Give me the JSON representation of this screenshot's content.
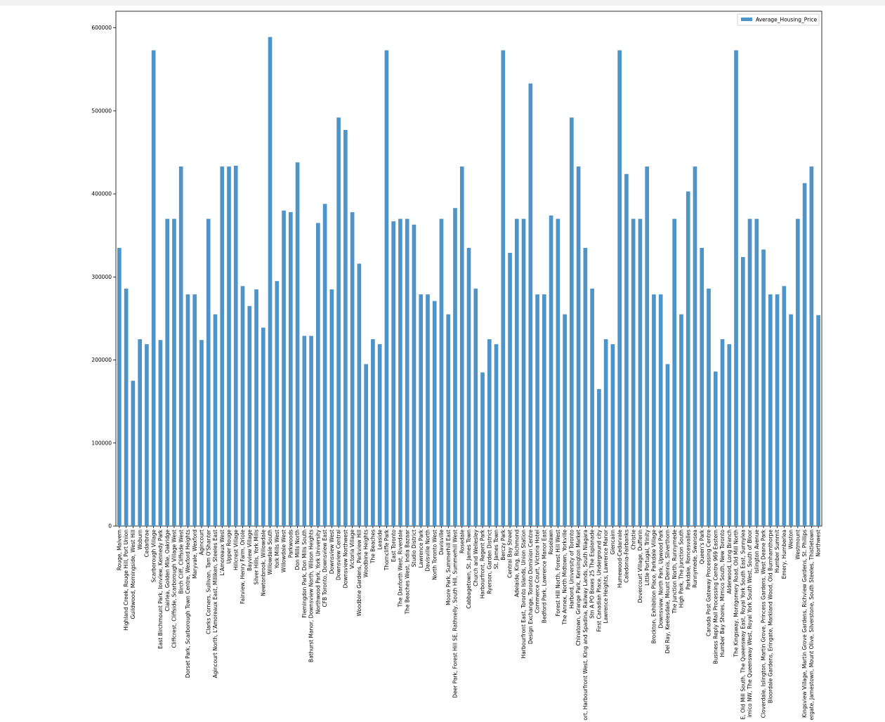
{
  "chart_data": {
    "type": "bar",
    "categories": [
      "Rouge, Malvern",
      "Highland Creek, Rouge Hill, Port Union",
      "Guildwood, Morningside, West Hill",
      "Woburn",
      "Cedarbrae",
      "Scarborough Village",
      "East Birchmount Park, Ionview, Kennedy Park",
      "Clairlea, Golden Mile, Oakridge",
      "Cliffcrest, Cliffside, Scarborough Village West",
      "Birch Cliff, Cliffside West",
      "Dorset Park, Scarborough Town Centre, Wexford Heights",
      "Maryvale, Wexford",
      "Agincourt",
      "Clarks Corners, Sullivan, Tam O'Shanter",
      "Agincourt North, L'Amoreaux East, Milliken, Steeles East",
      "L'Amoreaux West",
      "Upper Rouge",
      "Hillcrest Village",
      "Fairview, Henry Farm, Oriole",
      "Bayview Village",
      "Silver Hills, York Mills",
      "Newtonbrook, Willowdale",
      "Willowdale South",
      "York Mills West",
      "Willowdale West",
      "Parkwoods",
      "Don Mills North",
      "Flemingdon Park, Don Mills South",
      "Bathurst Manor, Downsview North, Wilson Heights",
      "Northwood Park, York University",
      "CFB Toronto, Downsview East",
      "Downsview West",
      "Downsview Central",
      "Downsview Northwest",
      "Victoria Village",
      "Woodbine Gardens, Parkview Hill",
      "Woodbine Heights",
      "The Beaches",
      "Leaside",
      "Thorncliffe Park",
      "East Toronto",
      "The Danforth West, Riverdale",
      "The Beaches West, India Bazaar",
      "Studio District",
      "Lawrence Park",
      "Davisville North",
      "North Toronto West",
      "Davisville",
      "Moore Park, Summerhill East",
      "Deer Park, Forest Hill SE, Rathnelly, South Hill, Summerhill West",
      "Rosedale",
      "Cabbagetown, St. James Town",
      "Church and Wellesley",
      "Harbourfront, Regent Park",
      "Ryerson, Garden District",
      "St. James Town",
      "Berczy Park",
      "Central Bay Street",
      "Adelaide, King, Richmond",
      "Harbourfront East, Toronto Islands, Union Station",
      "Design Exchange, Toronto Dominion Centre",
      "Commerce Court, Victoria Hotel",
      "Bedford Park, Lawrence Manor East",
      "Roselawn",
      "Forest Hill North, Forest Hill West",
      "The Annex, North Midtown, Yorkville",
      "Harbord, University of Toronto",
      "Chinatown, Grange Park, Kensington Market",
      "ort, Harbourfront West, King and Spadina, Railway Lands, South Niagara",
      "Stn A PO Boxes 25 The Esplanade",
      "First Canadian Place, Underground city",
      "Lawrence Heights, Lawrence Manor",
      "Glencairn",
      "Humewood-Cedarvale",
      "Caledonia-Fairbanks",
      "Christie",
      "Dovercourt Village, Dufferin",
      "Little Portugal, Trinity",
      "Brockton, Exhibition Place, Parkdale Village",
      "Downsview, North Park, Upwood Park",
      "Del Ray, Keelesdale, Mount Dennis, Silverthorn",
      "The Junction North, Runnymede",
      "High Park, The Junction South",
      "Parkdale, Roncesvalles",
      "Runnymede, Swansea",
      "Queen's Park",
      "Canada Post Gateway Processing Centre",
      "Business Reply Mail Processing Centre 969 Eastern",
      "Humber Bay Shores, Mimico South, New Toronto",
      "Alderwood, Long Branch",
      "The Kingsway, Montgomery Road, Old Mill North",
      "E, Old Mill South, The Queensway East, Royal York South East, Sunnylea",
      "imico NW, The Queensway West, Royal York South West, South of Bloor",
      "Islington Avenue",
      "Cloverdale, Islington, Martin Grove, Princess Gardens, West Deane Park",
      "Bloordale Gardens, Eringate, Markland Wood, Old Burnhamthorpe",
      "Humber Summit",
      "Emery, Humberlea",
      "Weston",
      "Westmount",
      "Kingsview Village, Martin Grove Gardens, Richview Gardens, St. Phillips",
      "ergate, Jamestown, Mount Olive, Silverstone, South Steeles, Thistletown",
      "Northwest"
    ],
    "series": [
      {
        "name": "Average_Housing_Price",
        "color": "#4f94c8",
        "values": [
          335000,
          286000,
          175000,
          225000,
          219000,
          573000,
          224000,
          370000,
          370000,
          433000,
          279000,
          279000,
          224000,
          370000,
          255000,
          433000,
          433000,
          434000,
          289000,
          265000,
          285000,
          239000,
          589000,
          295000,
          380000,
          378000,
          438000,
          229000,
          229000,
          365000,
          388000,
          285000,
          492000,
          477000,
          378000,
          316000,
          195000,
          225000,
          219000,
          573000,
          367000,
          370000,
          370000,
          363000,
          279000,
          279000,
          271000,
          370000,
          255000,
          383000,
          433000,
          335000,
          286000,
          185000,
          225000,
          219000,
          573000,
          329000,
          370000,
          370000,
          533000,
          279000,
          279000,
          374000,
          370000,
          255000,
          492000,
          433000,
          335000,
          286000,
          165000,
          225000,
          219000,
          573000,
          424000,
          370000,
          370000,
          433000,
          279000,
          279000,
          195000,
          370000,
          255000,
          403000,
          433000,
          335000,
          286000,
          186000,
          225000,
          219000,
          573000,
          324000,
          370000,
          370000,
          333000,
          279000,
          279000,
          289000,
          255000,
          370000,
          413000,
          433000,
          254000
        ]
      }
    ],
    "ylim": [
      0,
      620000
    ],
    "yticks": [
      0,
      100000,
      200000,
      300000,
      400000,
      500000,
      600000
    ],
    "legend": "upper right"
  }
}
